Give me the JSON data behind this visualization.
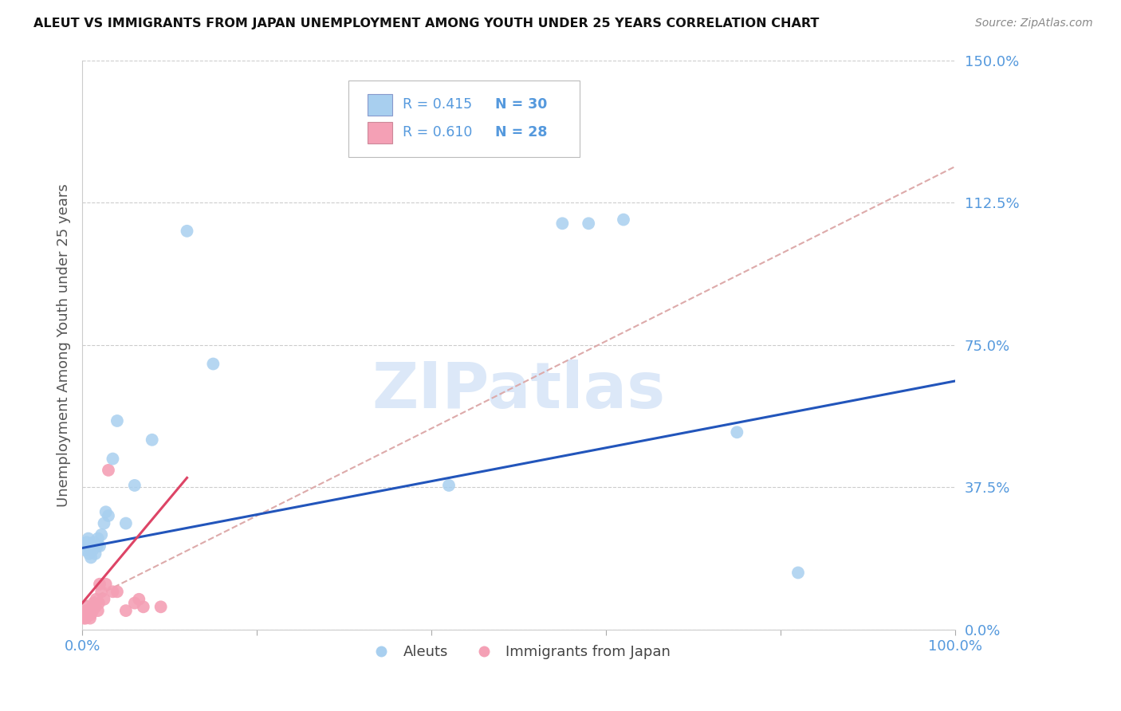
{
  "title": "ALEUT VS IMMIGRANTS FROM JAPAN UNEMPLOYMENT AMONG YOUTH UNDER 25 YEARS CORRELATION CHART",
  "source": "Source: ZipAtlas.com",
  "ylabel": "Unemployment Among Youth under 25 years",
  "ytick_labels": [
    "0.0%",
    "37.5%",
    "75.0%",
    "112.5%",
    "150.0%"
  ],
  "ytick_values": [
    0.0,
    0.375,
    0.75,
    1.125,
    1.5
  ],
  "xlim": [
    0.0,
    1.0
  ],
  "ylim": [
    0.0,
    1.5
  ],
  "legend_R1": "R = 0.415",
  "legend_N1": "N = 30",
  "legend_R2": "R = 0.610",
  "legend_N2": "N = 28",
  "aleut_color": "#A8CFEF",
  "japan_color": "#F4A0B5",
  "line_blue_color": "#2255BB",
  "line_red_color": "#DD4466",
  "dashed_line_color": "#DDAAAA",
  "title_color": "#111111",
  "axis_tick_color": "#5599DD",
  "watermark_text": "ZIPatlas",
  "aleuts_x": [
    0.003,
    0.005,
    0.006,
    0.007,
    0.008,
    0.009,
    0.01,
    0.012,
    0.013,
    0.015,
    0.017,
    0.018,
    0.02,
    0.022,
    0.025,
    0.027,
    0.03,
    0.035,
    0.04,
    0.05,
    0.06,
    0.08,
    0.12,
    0.15,
    0.42,
    0.55,
    0.58,
    0.62,
    0.75,
    0.82
  ],
  "aleuts_y": [
    0.21,
    0.23,
    0.22,
    0.24,
    0.2,
    0.22,
    0.19,
    0.21,
    0.23,
    0.2,
    0.22,
    0.24,
    0.22,
    0.25,
    0.28,
    0.31,
    0.3,
    0.45,
    0.55,
    0.28,
    0.38,
    0.5,
    1.05,
    0.7,
    0.38,
    1.07,
    1.07,
    1.08,
    0.52,
    0.15
  ],
  "japan_x": [
    0.002,
    0.003,
    0.004,
    0.005,
    0.006,
    0.007,
    0.008,
    0.009,
    0.01,
    0.011,
    0.012,
    0.013,
    0.015,
    0.016,
    0.018,
    0.019,
    0.02,
    0.022,
    0.025,
    0.027,
    0.03,
    0.035,
    0.04,
    0.05,
    0.06,
    0.065,
    0.07,
    0.09
  ],
  "japan_y": [
    0.03,
    0.04,
    0.03,
    0.05,
    0.04,
    0.06,
    0.05,
    0.03,
    0.04,
    0.06,
    0.05,
    0.07,
    0.06,
    0.08,
    0.05,
    0.07,
    0.12,
    0.1,
    0.08,
    0.12,
    0.42,
    0.1,
    0.1,
    0.05,
    0.07,
    0.08,
    0.06,
    0.06
  ],
  "blue_line_x": [
    0.0,
    1.0
  ],
  "blue_line_y": [
    0.215,
    0.655
  ],
  "red_line_x": [
    0.0,
    0.12
  ],
  "red_line_y": [
    0.07,
    0.4
  ],
  "dashed_line_x": [
    0.0,
    1.0
  ],
  "dashed_line_y": [
    0.07,
    1.22
  ],
  "grid_color": "#CCCCCC",
  "background_color": "#FFFFFF"
}
